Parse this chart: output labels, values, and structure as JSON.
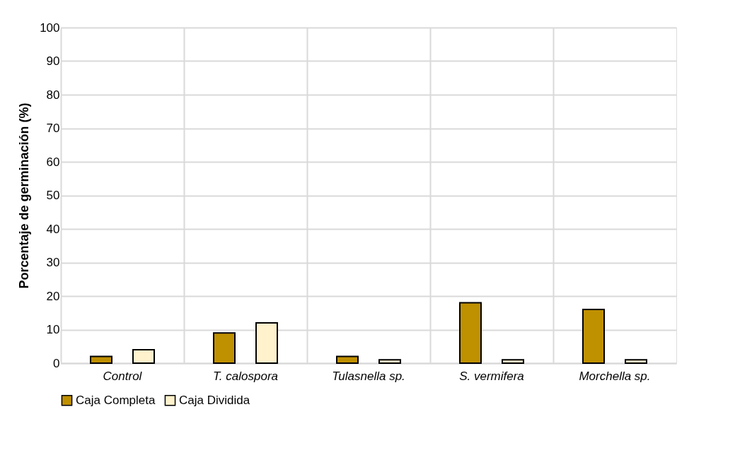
{
  "chart_data": {
    "type": "bar",
    "ylabel": "Porcentaje de germinación (%)",
    "categories": [
      "Control",
      "T. calospora",
      "Tulasnella sp.",
      "S. vermifera",
      "Morchella sp."
    ],
    "series": [
      {
        "name": "Caja Completa",
        "color": "#bf9000",
        "values": [
          2,
          9,
          2,
          18,
          16
        ]
      },
      {
        "name": "Caja Dividida",
        "color": "#fff2cc",
        "values": [
          4,
          12,
          1,
          1,
          1
        ]
      }
    ],
    "ylim": [
      0,
      100
    ],
    "yticks": [
      0,
      10,
      20,
      30,
      40,
      50,
      60,
      70,
      80,
      90,
      100
    ],
    "grid": true,
    "legend": "bottom"
  }
}
